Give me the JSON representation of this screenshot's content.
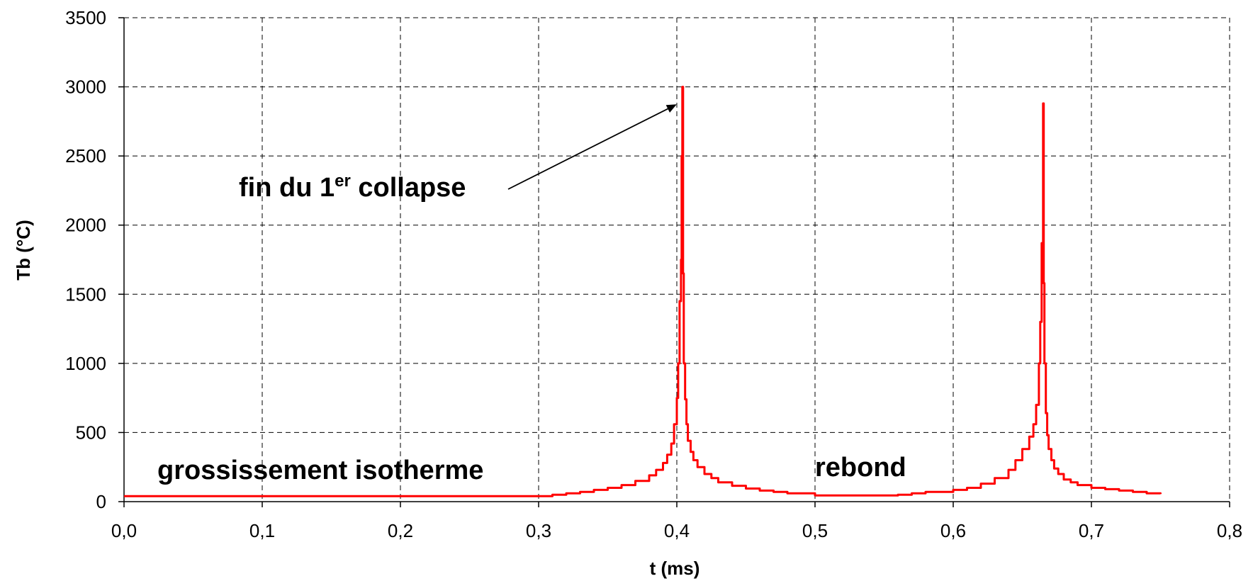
{
  "chart_data": {
    "type": "line",
    "xlabel": "t (ms)",
    "ylabel": "Tb (°C)",
    "xlim": [
      0,
      0.8
    ],
    "ylim": [
      0,
      3500
    ],
    "x_ticks": [
      0,
      0.1,
      0.2,
      0.3,
      0.4,
      0.5,
      0.6,
      0.7,
      0.8
    ],
    "x_tick_labels": [
      "0,0",
      "0,1",
      "0,2",
      "0,3",
      "0,4",
      "0,5",
      "0,6",
      "0,7",
      "0,8"
    ],
    "y_ticks": [
      0,
      500,
      1000,
      1500,
      2000,
      2500,
      3000,
      3500
    ],
    "y_tick_labels": [
      "0",
      "500",
      "1000",
      "1500",
      "2000",
      "2500",
      "3000",
      "3500"
    ],
    "grid": true,
    "line_style": "step",
    "series": [
      {
        "color": "#ff0000",
        "x": [
          0.0,
          0.1,
          0.2,
          0.3,
          0.31,
          0.32,
          0.33,
          0.34,
          0.35,
          0.36,
          0.37,
          0.38,
          0.385,
          0.39,
          0.393,
          0.396,
          0.398,
          0.4,
          0.401,
          0.402,
          0.403,
          0.4035,
          0.404,
          0.4045,
          0.405,
          0.406,
          0.407,
          0.408,
          0.41,
          0.412,
          0.415,
          0.42,
          0.425,
          0.43,
          0.44,
          0.45,
          0.46,
          0.47,
          0.48,
          0.5,
          0.52,
          0.54,
          0.56,
          0.57,
          0.58,
          0.6,
          0.61,
          0.62,
          0.63,
          0.64,
          0.645,
          0.65,
          0.655,
          0.658,
          0.66,
          0.662,
          0.663,
          0.664,
          0.665,
          0.6655,
          0.666,
          0.667,
          0.668,
          0.669,
          0.671,
          0.673,
          0.676,
          0.68,
          0.685,
          0.69,
          0.7,
          0.71,
          0.72,
          0.73,
          0.74,
          0.75
        ],
        "y": [
          40,
          40,
          40,
          40,
          50,
          60,
          70,
          85,
          100,
          120,
          150,
          190,
          230,
          280,
          340,
          420,
          560,
          750,
          1000,
          1450,
          1750,
          2500,
          3000,
          1650,
          1000,
          740,
          560,
          440,
          360,
          300,
          250,
          200,
          170,
          140,
          115,
          95,
          80,
          70,
          60,
          45,
          45,
          45,
          50,
          60,
          70,
          85,
          100,
          130,
          170,
          230,
          300,
          380,
          470,
          560,
          700,
          1000,
          1300,
          1870,
          2880,
          1580,
          1000,
          640,
          480,
          380,
          300,
          240,
          200,
          160,
          140,
          120,
          100,
          90,
          80,
          70,
          60,
          55
        ]
      }
    ],
    "annotations": [
      {
        "text": "fin du 1",
        "superscript": "er",
        "text_after": " collapse",
        "arrow_to": [
          0.4,
          2920
        ]
      },
      {
        "text": "grossissement isotherme"
      },
      {
        "text": "rebond"
      }
    ]
  }
}
